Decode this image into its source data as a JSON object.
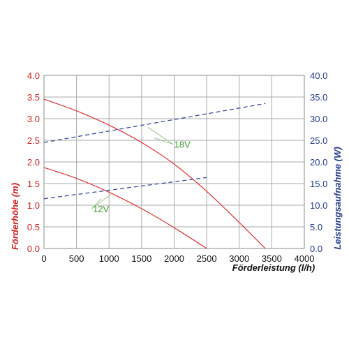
{
  "chart_data": {
    "type": "line",
    "xlabel": "Förderleistung (l/h)",
    "ylabel_left": "Förderhöhe (m)",
    "ylabel_right": "Leistungsaufnahme (W)",
    "xlim": [
      0,
      4000
    ],
    "ylim_left": [
      0,
      4
    ],
    "ylim_right": [
      0,
      40
    ],
    "x_ticks": [
      "0",
      "500",
      "1000",
      "1500",
      "2000",
      "2500",
      "3000",
      "3500",
      "4000"
    ],
    "y_left_ticks": [
      "0.0",
      "0.5",
      "1.0",
      "1.5",
      "2.0",
      "2.5",
      "3.0",
      "3.5",
      "4.0"
    ],
    "y_right_ticks": [
      "0.0",
      "5.0",
      "10.0",
      "15.0",
      "20.0",
      "25.0",
      "30.0",
      "35.0",
      "40.0"
    ],
    "grid": true,
    "colors": {
      "head": "#e03030",
      "power": "#3a4aa0",
      "annotation": "#3c9a2f"
    },
    "series": [
      {
        "axis": "left",
        "style": "solid",
        "label_ref": "18V",
        "x": [
          0,
          500,
          1000,
          1500,
          2000,
          2500,
          3000,
          3400
        ],
        "y": [
          3.45,
          3.18,
          2.85,
          2.45,
          1.95,
          1.32,
          0.6,
          0.0
        ]
      },
      {
        "axis": "left",
        "style": "solid",
        "label_ref": "12V",
        "x": [
          0,
          500,
          1000,
          1500,
          2000,
          2500
        ],
        "y": [
          1.87,
          1.62,
          1.3,
          0.92,
          0.48,
          0.0
        ]
      },
      {
        "axis": "right",
        "style": "dashed",
        "label_ref": "18V",
        "x": [
          0,
          3400
        ],
        "y": [
          24.5,
          33.5
        ]
      },
      {
        "axis": "right",
        "style": "dashed",
        "label_ref": "12V",
        "x": [
          0,
          2500
        ],
        "y": [
          11.5,
          16.4
        ]
      }
    ],
    "annotations": [
      {
        "text": "18V",
        "pointer_x": [
          1600,
          1700
        ],
        "pointer_y_left": [
          2.8,
          2.55
        ],
        "anchor_x": 1980,
        "anchor_y_left": 2.41
      },
      {
        "text": "12V",
        "pointer_x": [
          880,
          1030
        ],
        "pointer_y_left": [
          1.15,
          1.25
        ],
        "anchor_x": 730,
        "anchor_y_left": 0.92
      }
    ]
  }
}
